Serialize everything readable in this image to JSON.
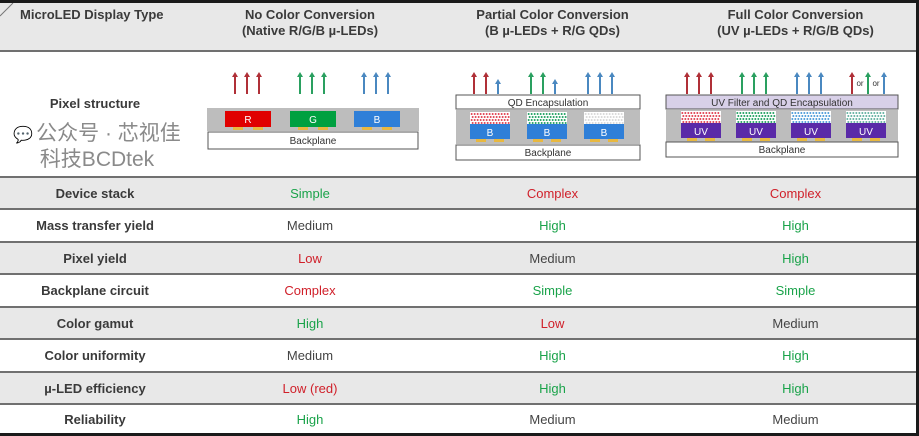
{
  "header": {
    "corner": "MicroLED Display Type",
    "columns": [
      {
        "title": "No Color Conversion",
        "subtitle": "(Native R/G/B µ-LEDs)"
      },
      {
        "title": "Partial Color Conversion",
        "subtitle": "(B µ-LEDs + R/G QDs)"
      },
      {
        "title": "Full Color Conversion",
        "subtitle": "(UV µ-LEDs + R/G/B QDs)"
      }
    ]
  },
  "pixel_structure": {
    "label": "Pixel structure",
    "native": {
      "chips": [
        "R",
        "G",
        "B"
      ],
      "backplane": "Backplane"
    },
    "partial": {
      "encapsulation": "QD Encapsulation",
      "chips": [
        "B",
        "B",
        "B"
      ],
      "backplane": "Backplane"
    },
    "full": {
      "encapsulation": "UV Filter and QD Encapsulation",
      "chips": [
        "UV",
        "UV",
        "UV",
        "UV"
      ],
      "backplane": "Backplane",
      "or": "or"
    }
  },
  "colors": {
    "good": "#1aa34a",
    "bad": "#d0202a",
    "neutral": "#444444"
  },
  "rows": [
    {
      "label": "Device stack",
      "values": [
        {
          "t": "Simple",
          "s": "good"
        },
        {
          "t": "Complex",
          "s": "bad"
        },
        {
          "t": "Complex",
          "s": "bad"
        }
      ]
    },
    {
      "label": "Mass transfer yield",
      "values": [
        {
          "t": "Medium",
          "s": "neutral"
        },
        {
          "t": "High",
          "s": "good"
        },
        {
          "t": "High",
          "s": "good"
        }
      ]
    },
    {
      "label": "Pixel yield",
      "values": [
        {
          "t": "Low",
          "s": "bad"
        },
        {
          "t": "Medium",
          "s": "neutral"
        },
        {
          "t": "High",
          "s": "good"
        }
      ]
    },
    {
      "label": "Backplane circuit",
      "values": [
        {
          "t": "Complex",
          "s": "bad"
        },
        {
          "t": "Simple",
          "s": "good"
        },
        {
          "t": "Simple",
          "s": "good"
        }
      ]
    },
    {
      "label": "Color gamut",
      "values": [
        {
          "t": "High",
          "s": "good"
        },
        {
          "t": "Low",
          "s": "bad"
        },
        {
          "t": "Medium",
          "s": "neutral"
        }
      ]
    },
    {
      "label": "Color uniformity",
      "values": [
        {
          "t": "Medium",
          "s": "neutral"
        },
        {
          "t": "High",
          "s": "good"
        },
        {
          "t": "High",
          "s": "good"
        }
      ]
    },
    {
      "label": "µ-LED efficiency",
      "values": [
        {
          "t": "Low (red)",
          "s": "bad"
        },
        {
          "t": "High",
          "s": "good"
        },
        {
          "t": "High",
          "s": "good"
        }
      ]
    },
    {
      "label": "Reliability",
      "values": [
        {
          "t": "High",
          "s": "good"
        },
        {
          "t": "Medium",
          "s": "neutral"
        },
        {
          "t": "Medium",
          "s": "neutral"
        }
      ]
    }
  ],
  "watermark": "公众号 · 芯视佳科技BCDtek"
}
